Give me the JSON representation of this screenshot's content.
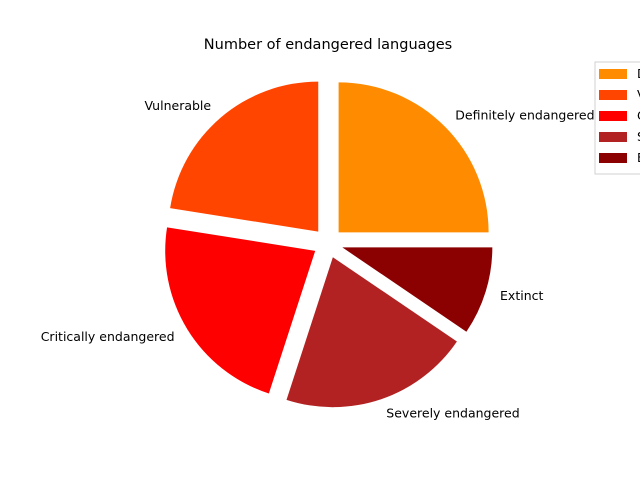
{
  "chart_data": {
    "type": "pie",
    "title": "Number of endangered languages",
    "slices": [
      {
        "label": "Definitely endangered",
        "value": 25,
        "color": "#FF8C00"
      },
      {
        "label": "Vulnerable",
        "value": 22.5,
        "color": "#FF4500"
      },
      {
        "label": "Critically endangered",
        "value": 22.5,
        "color": "#FF0000"
      },
      {
        "label": "Severely endangered",
        "value": 20.5,
        "color": "#B22222"
      },
      {
        "label": "Extinct",
        "value": 9.5,
        "color": "#8B0000"
      }
    ],
    "legend": {
      "placement": "upper-right",
      "entries": [
        "Definitely endangered",
        "Vulnerable",
        "Critically endangered",
        "Severely endangered",
        "Extinct"
      ]
    }
  }
}
